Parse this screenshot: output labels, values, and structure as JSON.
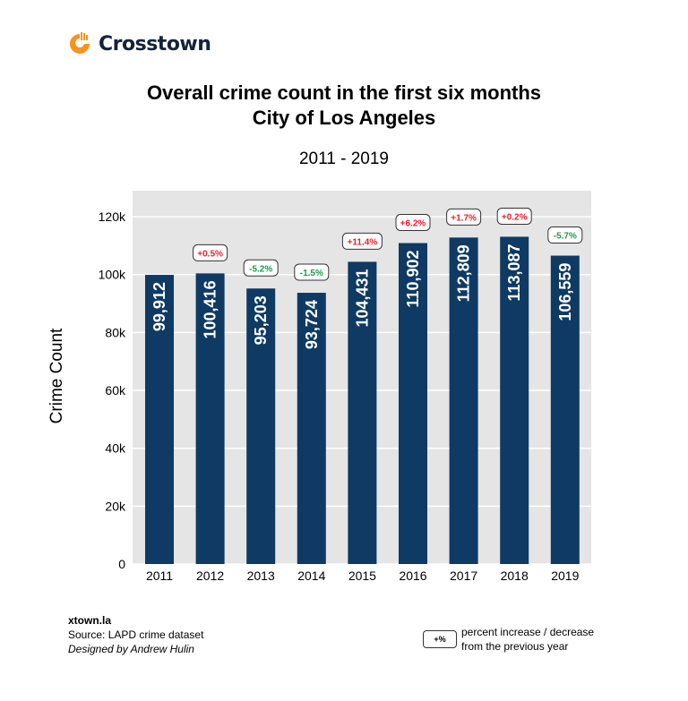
{
  "brand": {
    "name": "Crosstown",
    "color": "#f7931e"
  },
  "title_line1": "Overall crime count in the first six months",
  "title_line2": "City of Los Angeles",
  "subtitle": "2011 - 2019",
  "chart_data": {
    "type": "bar",
    "title": "Overall crime count in the first six months City of Los Angeles",
    "subtitle": "2011 - 2019",
    "xlabel": "",
    "ylabel": "Crime Count",
    "ylim": [
      0,
      129000
    ],
    "yticks": [
      0,
      20000,
      40000,
      60000,
      80000,
      100000,
      120000
    ],
    "ytick_labels": [
      "0",
      "20k",
      "40k",
      "60k",
      "80k",
      "100k",
      "120k"
    ],
    "grid": true,
    "categories": [
      "2011",
      "2012",
      "2013",
      "2014",
      "2015",
      "2016",
      "2017",
      "2018",
      "2019"
    ],
    "values": [
      99912,
      100416,
      95203,
      93724,
      104431,
      110902,
      112809,
      113087,
      106559
    ],
    "value_labels": [
      "99,912",
      "100,416",
      "95,203",
      "93,724",
      "104,431",
      "110,902",
      "112,809",
      "113,087",
      "106,559"
    ],
    "change_labels": [
      "",
      "+0.5%",
      "-5.2%",
      "-1.5%",
      "+11.4%",
      "+6.2%",
      "+1.7%",
      "+0.2%",
      "-5.7%"
    ],
    "colors": {
      "bar": "#0e3a63",
      "panel": "#e5e5e5",
      "increase": "#e8202a",
      "decrease": "#1a9b4b"
    }
  },
  "footer": {
    "site": "xtown.la",
    "source": "Source: LAPD crime dataset",
    "credit": "Designed by Andrew Hulin"
  },
  "legend": {
    "box": "+%",
    "text1": "percent increase / decrease",
    "text2": "from the previous year"
  }
}
